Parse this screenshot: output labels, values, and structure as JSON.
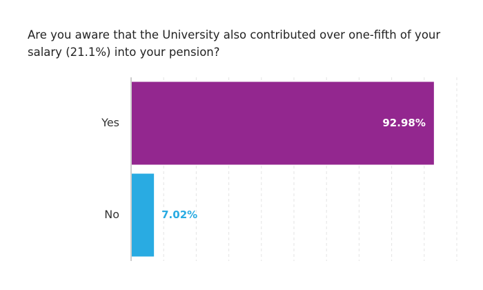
{
  "chart_data": {
    "type": "bar",
    "orientation": "horizontal",
    "title": "Are you aware that the University also contributed over one-fifth of your salary (21.1%) into your pension?",
    "xlabel": "",
    "ylabel": "",
    "xlim": [
      0,
      100
    ],
    "grid": true,
    "legend": "none",
    "categories": [
      "Yes",
      "No"
    ],
    "values": [
      92.98,
      7.02
    ],
    "data_labels": [
      "92.98%",
      "7.02%"
    ],
    "colors": [
      "#93278f",
      "#29abe2"
    ],
    "data_label_colors": [
      "#ffffff",
      "#29abe2"
    ]
  }
}
